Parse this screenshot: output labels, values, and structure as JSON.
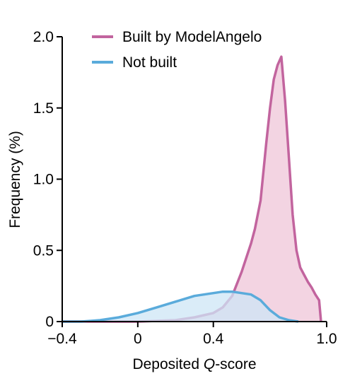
{
  "chart_data": {
    "type": "area",
    "title": "",
    "xlabel_prefix": "Deposited ",
    "xlabel_italic": "Q",
    "xlabel_suffix": "-score",
    "ylabel": "Frequency (%)",
    "xlim": [
      -0.4,
      1.0
    ],
    "ylim": [
      0,
      2.0
    ],
    "x_ticks": [
      -0.4,
      0,
      0.4,
      1.0
    ],
    "x_tick_labels": [
      "−0.4",
      "0",
      "0.4",
      "1.0"
    ],
    "y_ticks": [
      0,
      0.5,
      1.0,
      1.5,
      2.0
    ],
    "y_tick_labels": [
      "0",
      "0.5",
      "1.0",
      "1.5",
      "2.0"
    ],
    "grid": false,
    "legend_position": "top",
    "series": [
      {
        "name": "Built by ModelAngelo",
        "color": "#c2649e",
        "fill": "#f2cfdf",
        "x": [
          -0.4,
          -0.2,
          0.0,
          0.2,
          0.3,
          0.4,
          0.45,
          0.5,
          0.55,
          0.6,
          0.62,
          0.65,
          0.68,
          0.7,
          0.72,
          0.74,
          0.76,
          0.78,
          0.8,
          0.82,
          0.84,
          0.86,
          0.88,
          0.9,
          0.92,
          0.94,
          0.96,
          0.97
        ],
        "values": [
          0.0,
          0.0,
          0.0,
          0.01,
          0.03,
          0.06,
          0.1,
          0.18,
          0.35,
          0.55,
          0.65,
          0.85,
          1.25,
          1.5,
          1.7,
          1.8,
          1.86,
          1.55,
          1.15,
          0.75,
          0.5,
          0.38,
          0.33,
          0.28,
          0.24,
          0.19,
          0.15,
          0.0
        ]
      },
      {
        "name": "Not built",
        "color": "#5aabdb",
        "fill": "#cde6f5",
        "x": [
          -0.4,
          -0.3,
          -0.2,
          -0.1,
          0.0,
          0.1,
          0.2,
          0.3,
          0.35,
          0.4,
          0.45,
          0.5,
          0.55,
          0.6,
          0.65,
          0.7,
          0.75,
          0.8,
          0.85
        ],
        "values": [
          0.0,
          0.0,
          0.01,
          0.03,
          0.06,
          0.1,
          0.14,
          0.18,
          0.19,
          0.2,
          0.21,
          0.21,
          0.2,
          0.19,
          0.15,
          0.08,
          0.03,
          0.01,
          0.0
        ]
      }
    ]
  }
}
